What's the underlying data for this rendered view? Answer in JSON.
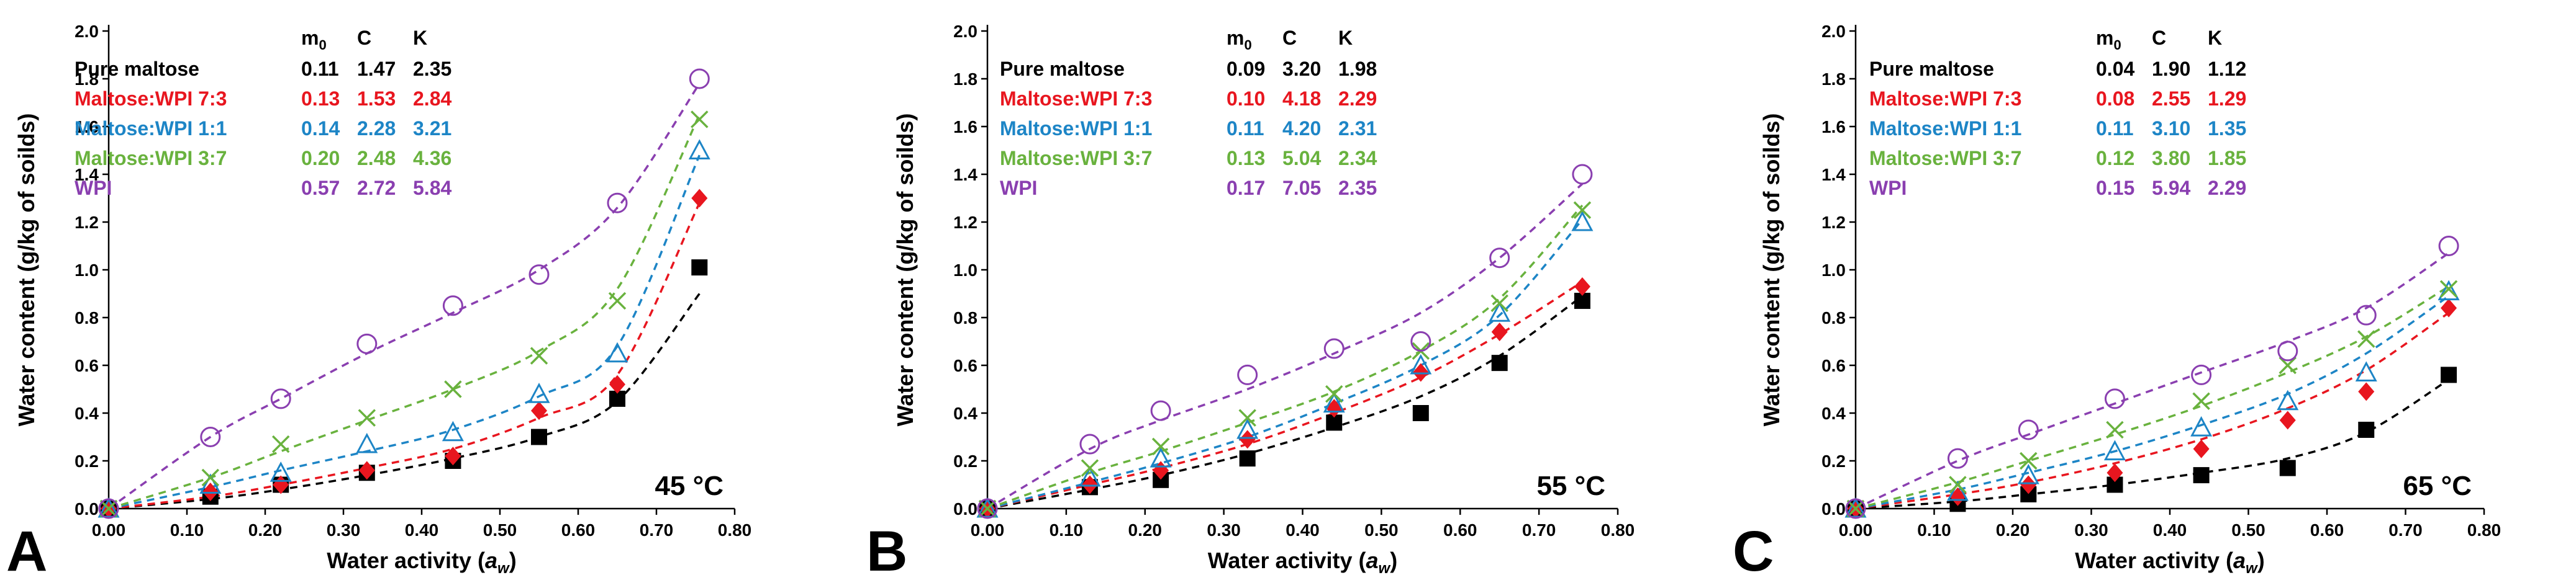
{
  "figure": {
    "colors": {
      "pure_maltose": "#000000",
      "maltose_wpi_7_3": "#e8161f",
      "maltose_wpi_1_1": "#1d85c6",
      "maltose_wpi_3_7": "#69b23e",
      "wpi": "#8a3fb0"
    }
  },
  "chart_data": [
    {
      "type": "scatter",
      "panel": "A",
      "temperature": "45 °C",
      "xlabel": "Water activity (a_w)",
      "ylabel": "Water content (g/kg of soilds)",
      "xlim": [
        0.0,
        0.8
      ],
      "ylim": [
        0.0,
        2.0
      ],
      "xticks": [
        "0.00",
        "0.10",
        "0.20",
        "0.30",
        "0.40",
        "0.50",
        "0.60",
        "0.70",
        "0.80"
      ],
      "yticks": [
        "0.0",
        "0.2",
        "0.4",
        "0.6",
        "0.8",
        "1.0",
        "1.2",
        "1.4",
        "1.6",
        "1.8",
        "2.0"
      ],
      "table_header": [
        "m0",
        "C",
        "K"
      ],
      "x": [
        0.0,
        0.13,
        0.22,
        0.33,
        0.44,
        0.55,
        0.65,
        0.755
      ],
      "series": [
        {
          "name": "Pure maltose",
          "key": "pure_maltose",
          "marker": "filled-square",
          "m0": "0.11",
          "C": "1.47",
          "K": "2.35",
          "values": [
            0.0,
            0.05,
            0.1,
            0.15,
            0.2,
            0.3,
            0.46,
            1.01
          ],
          "fit": [
            0.0,
            0.04,
            0.08,
            0.14,
            0.21,
            0.3,
            0.45,
            0.9
          ]
        },
        {
          "name": "Maltose:WPI 7:3",
          "key": "maltose_wpi_7_3",
          "marker": "diamond",
          "m0": "0.13",
          "C": "1.53",
          "K": "2.84",
          "values": [
            0.0,
            0.07,
            0.1,
            0.16,
            0.22,
            0.41,
            0.52,
            1.3
          ],
          "fit": [
            0.0,
            0.05,
            0.1,
            0.17,
            0.25,
            0.38,
            0.56,
            1.28
          ]
        },
        {
          "name": "Maltose:WPI 1:1",
          "key": "maltose_wpi_1_1",
          "marker": "triangle",
          "m0": "0.14",
          "C": "2.28",
          "K": "3.21",
          "values": [
            0.0,
            0.1,
            0.15,
            0.27,
            0.32,
            0.48,
            0.65,
            1.5
          ],
          "fit": [
            0.0,
            0.09,
            0.16,
            0.24,
            0.33,
            0.47,
            0.68,
            1.48
          ]
        },
        {
          "name": "Maltose:WPI 3:7",
          "key": "maltose_wpi_3_7",
          "marker": "cross",
          "m0": "0.20",
          "C": "2.48",
          "K": "4.36",
          "values": [
            0.0,
            0.13,
            0.27,
            0.38,
            0.5,
            0.64,
            0.87,
            1.63
          ],
          "fit": [
            0.0,
            0.13,
            0.24,
            0.37,
            0.5,
            0.66,
            0.92,
            1.65
          ]
        },
        {
          "name": "WPI",
          "key": "wpi",
          "marker": "open-circle",
          "m0": "0.57",
          "C": "2.72",
          "K": "5.84",
          "values": [
            0.0,
            0.3,
            0.46,
            0.69,
            0.85,
            0.98,
            1.28,
            1.8
          ],
          "fit": [
            0.0,
            0.3,
            0.46,
            0.65,
            0.82,
            1.0,
            1.26,
            1.78
          ]
        }
      ]
    },
    {
      "type": "scatter",
      "panel": "B",
      "temperature": "55 °C",
      "xlabel": "Water activity (a_w)",
      "ylabel": "Water content (g/kg of soilds)",
      "xlim": [
        0.0,
        0.8
      ],
      "ylim": [
        0.0,
        2.0
      ],
      "xticks": [
        "0.00",
        "0.10",
        "0.20",
        "0.30",
        "0.40",
        "0.50",
        "0.60",
        "0.70",
        "0.80"
      ],
      "yticks": [
        "0.0",
        "0.2",
        "0.4",
        "0.6",
        "0.8",
        "1.0",
        "1.2",
        "1.4",
        "1.6",
        "1.8",
        "2.0"
      ],
      "table_header": [
        "m0",
        "C",
        "K"
      ],
      "x": [
        0.0,
        0.13,
        0.22,
        0.33,
        0.44,
        0.55,
        0.65,
        0.755
      ],
      "series": [
        {
          "name": "Pure maltose",
          "key": "pure_maltose",
          "marker": "filled-square",
          "m0": "0.09",
          "C": "3.20",
          "K": "1.98",
          "values": [
            0.0,
            0.09,
            0.12,
            0.21,
            0.36,
            0.4,
            0.61,
            0.87
          ],
          "fit": [
            0.0,
            0.08,
            0.14,
            0.23,
            0.34,
            0.47,
            0.64,
            0.89
          ]
        },
        {
          "name": "Maltose:WPI 7:3",
          "key": "maltose_wpi_7_3",
          "marker": "diamond",
          "m0": "0.10",
          "C": "4.18",
          "K": "2.29",
          "values": [
            0.0,
            0.1,
            0.16,
            0.29,
            0.42,
            0.57,
            0.74,
            0.93
          ],
          "fit": [
            0.0,
            0.1,
            0.17,
            0.27,
            0.4,
            0.55,
            0.73,
            0.95
          ]
        },
        {
          "name": "Maltose:WPI 1:1",
          "key": "maltose_wpi_1_1",
          "marker": "triangle",
          "m0": "0.11",
          "C": "4.20",
          "K": "2.31",
          "values": [
            0.0,
            0.13,
            0.21,
            0.33,
            0.44,
            0.6,
            0.82,
            1.2
          ],
          "fit": [
            0.0,
            0.11,
            0.19,
            0.3,
            0.44,
            0.6,
            0.81,
            1.21
          ]
        },
        {
          "name": "Maltose:WPI 3:7",
          "key": "maltose_wpi_3_7",
          "marker": "cross",
          "m0": "0.13",
          "C": "5.04",
          "K": "2.34",
          "values": [
            0.0,
            0.17,
            0.26,
            0.38,
            0.48,
            0.66,
            0.86,
            1.25
          ],
          "fit": [
            0.0,
            0.15,
            0.24,
            0.36,
            0.49,
            0.66,
            0.88,
            1.27
          ]
        },
        {
          "name": "WPI",
          "key": "wpi",
          "marker": "open-circle",
          "m0": "0.17",
          "C": "7.05",
          "K": "2.35",
          "values": [
            0.0,
            0.27,
            0.41,
            0.56,
            0.67,
            0.7,
            1.05,
            1.4
          ],
          "fit": [
            0.0,
            0.25,
            0.37,
            0.5,
            0.65,
            0.82,
            1.05,
            1.36
          ]
        }
      ]
    },
    {
      "type": "scatter",
      "panel": "C",
      "temperature": "65 °C",
      "xlabel": "Water activity (a_w)",
      "ylabel": "Water content (g/kg of soilds)",
      "xlim": [
        0.0,
        0.8
      ],
      "ylim": [
        0.0,
        2.0
      ],
      "xticks": [
        "0.00",
        "0.10",
        "0.20",
        "0.30",
        "0.40",
        "0.50",
        "0.60",
        "0.70",
        "0.80"
      ],
      "yticks": [
        "0.0",
        "0.2",
        "0.4",
        "0.6",
        "0.8",
        "1.0",
        "1.2",
        "1.4",
        "1.6",
        "1.8",
        "2.0"
      ],
      "table_header": [
        "m0",
        "C",
        "K"
      ],
      "x": [
        0.0,
        0.13,
        0.22,
        0.33,
        0.44,
        0.55,
        0.65,
        0.755
      ],
      "series": [
        {
          "name": "Pure maltose",
          "key": "pure_maltose",
          "marker": "filled-square",
          "m0": "0.04",
          "C": "1.90",
          "K": "1.12",
          "values": [
            0.0,
            0.02,
            0.06,
            0.1,
            0.14,
            0.17,
            0.33,
            0.56
          ],
          "fit": [
            0.0,
            0.03,
            0.06,
            0.1,
            0.15,
            0.21,
            0.32,
            0.54
          ]
        },
        {
          "name": "Maltose:WPI 7:3",
          "key": "maltose_wpi_7_3",
          "marker": "diamond",
          "m0": "0.08",
          "C": "2.55",
          "K": "1.29",
          "values": [
            0.0,
            0.05,
            0.1,
            0.15,
            0.25,
            0.37,
            0.49,
            0.84
          ],
          "fit": [
            0.0,
            0.06,
            0.11,
            0.19,
            0.29,
            0.42,
            0.58,
            0.82
          ]
        },
        {
          "name": "Maltose:WPI 1:1",
          "key": "maltose_wpi_1_1",
          "marker": "triangle",
          "m0": "0.11",
          "C": "3.10",
          "K": "1.35",
          "values": [
            0.0,
            0.07,
            0.14,
            0.24,
            0.34,
            0.45,
            0.57,
            0.91
          ],
          "fit": [
            0.0,
            0.08,
            0.15,
            0.24,
            0.35,
            0.48,
            0.65,
            0.89
          ]
        },
        {
          "name": "Maltose:WPI 3:7",
          "key": "maltose_wpi_3_7",
          "marker": "cross",
          "m0": "0.12",
          "C": "3.80",
          "K": "1.85",
          "values": [
            0.0,
            0.1,
            0.2,
            0.33,
            0.45,
            0.6,
            0.71,
            0.92
          ],
          "fit": [
            0.0,
            0.11,
            0.2,
            0.31,
            0.43,
            0.57,
            0.72,
            0.93
          ]
        },
        {
          "name": "WPI",
          "key": "wpi",
          "marker": "open-circle",
          "m0": "0.15",
          "C": "5.94",
          "K": "2.29",
          "values": [
            0.0,
            0.21,
            0.33,
            0.46,
            0.56,
            0.66,
            0.81,
            1.1
          ],
          "fit": [
            0.0,
            0.2,
            0.31,
            0.44,
            0.57,
            0.7,
            0.84,
            1.07
          ]
        }
      ]
    }
  ]
}
